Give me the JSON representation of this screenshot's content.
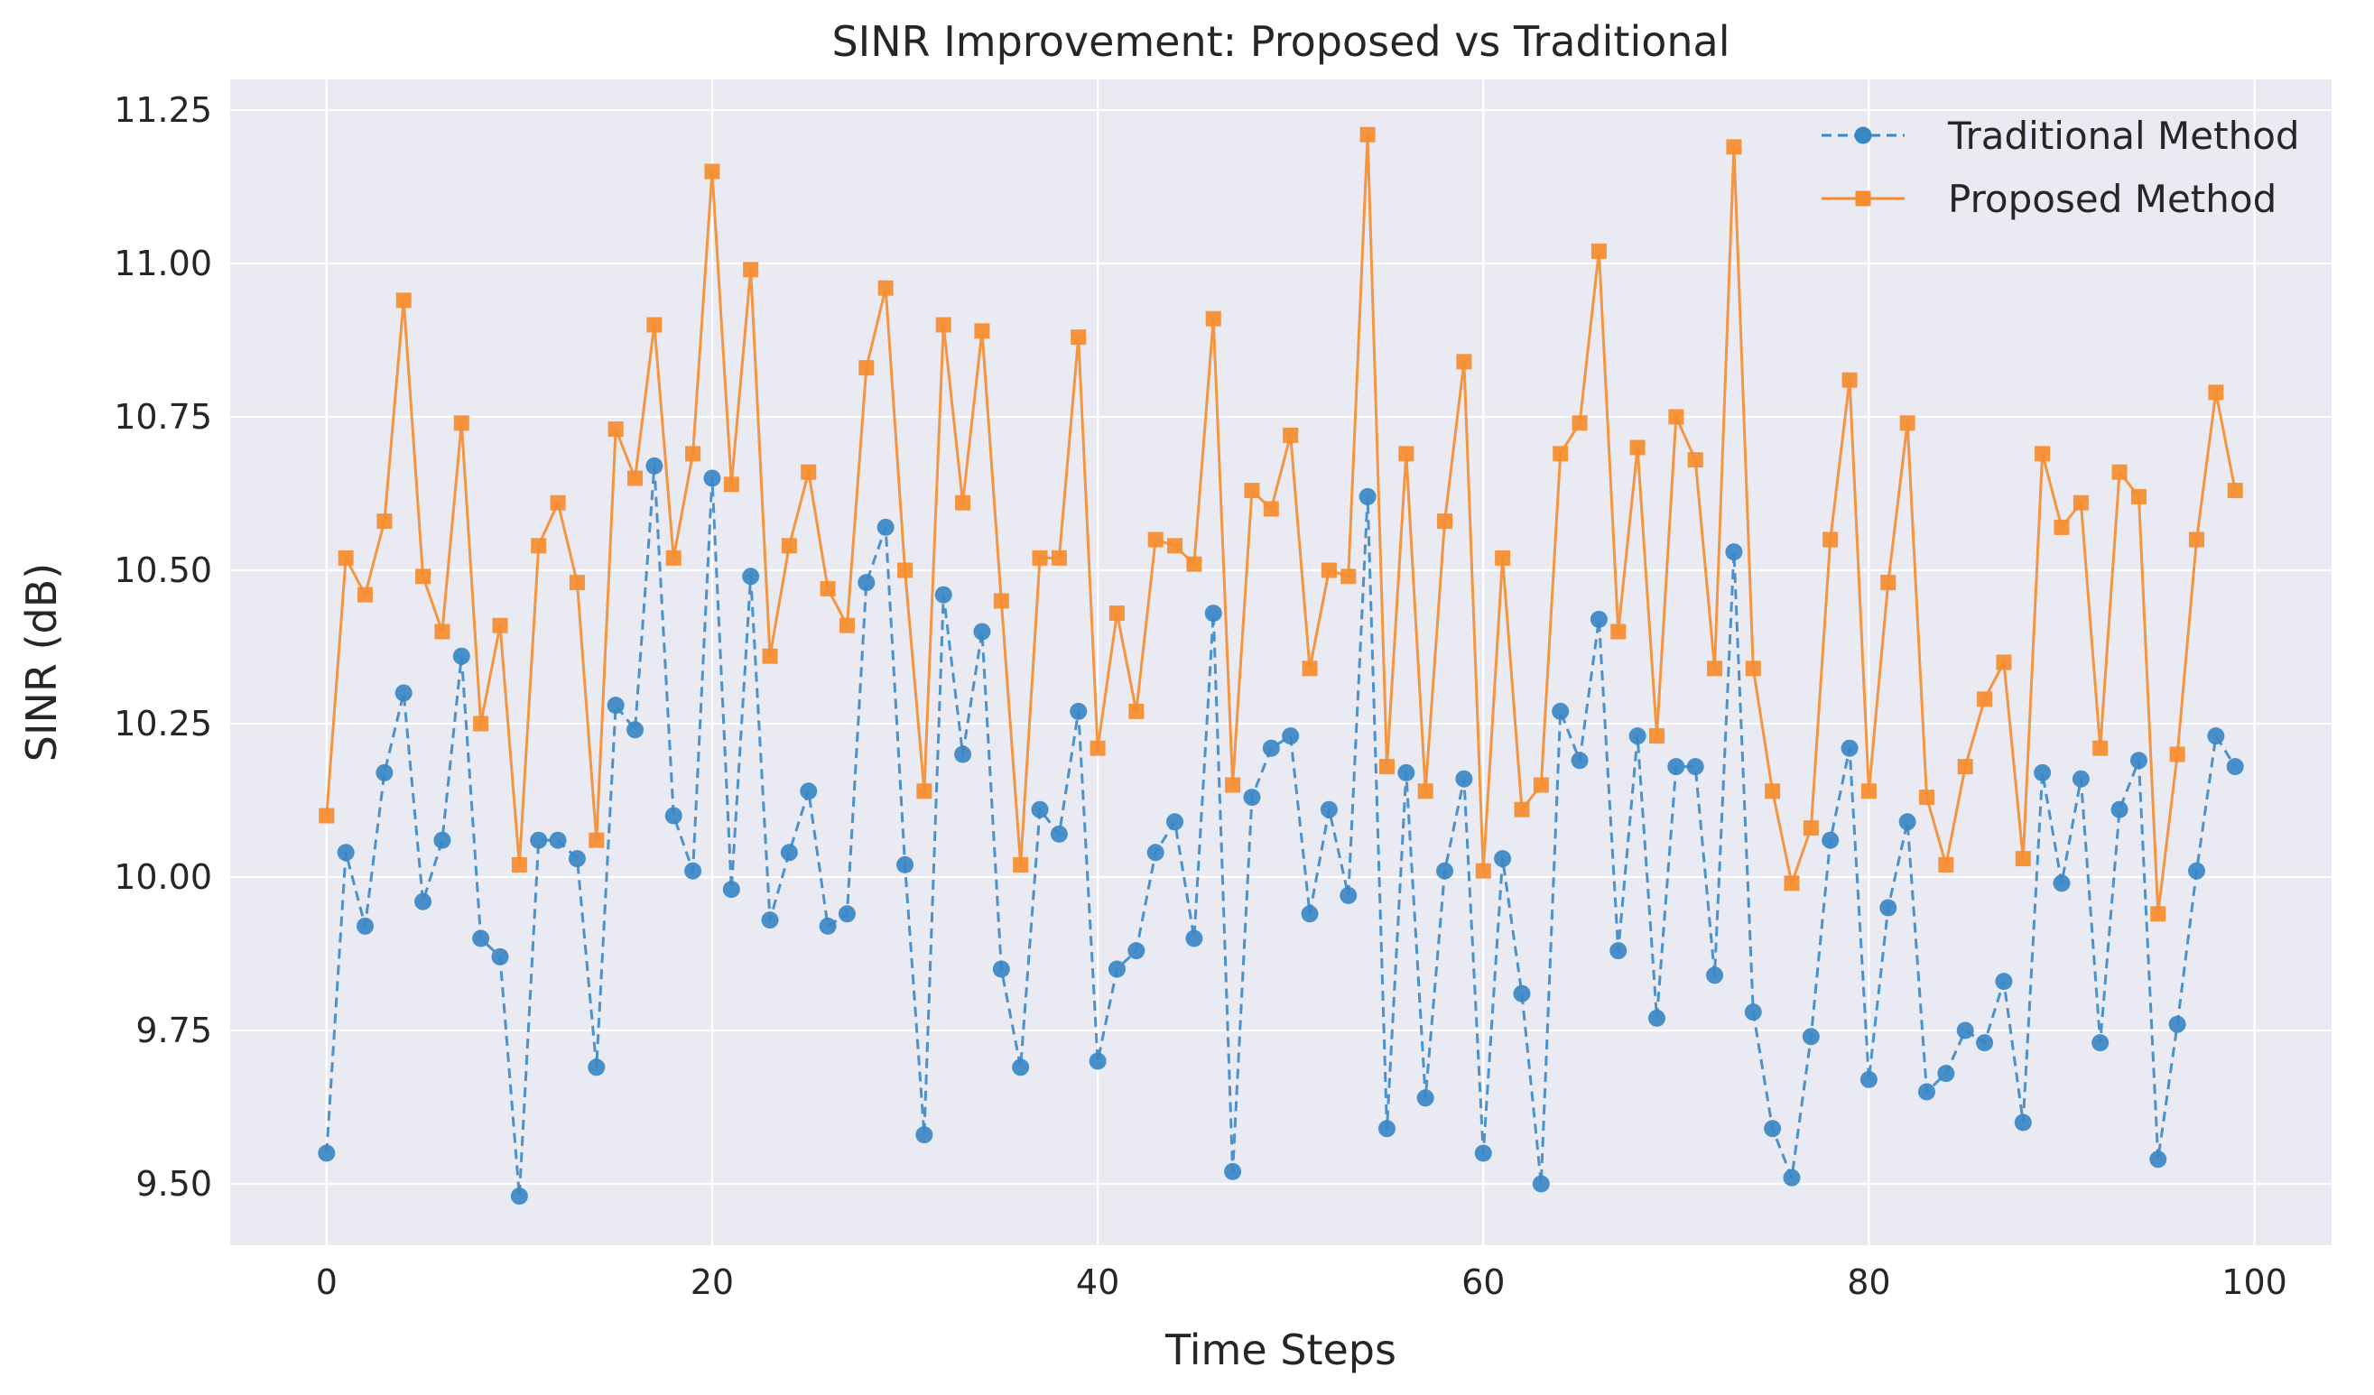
{
  "chart_data": {
    "type": "line",
    "title": "SINR Improvement: Proposed vs Traditional",
    "xlabel": "Time Steps",
    "ylabel": "SINR (dB)",
    "xlim": [
      -5,
      104
    ],
    "ylim": [
      9.4,
      11.3
    ],
    "xticks": [
      0,
      20,
      40,
      60,
      80,
      100
    ],
    "yticks": [
      9.5,
      9.75,
      10.0,
      10.25,
      10.5,
      10.75,
      11.0,
      11.25
    ],
    "xtick_labels": [
      "0",
      "20",
      "40",
      "60",
      "80",
      "100"
    ],
    "ytick_labels": [
      "9.50",
      "9.75",
      "10.00",
      "10.25",
      "10.50",
      "10.75",
      "11.00",
      "11.25"
    ],
    "grid": true,
    "legend_position": "top-right",
    "x": [
      0,
      1,
      2,
      3,
      4,
      5,
      6,
      7,
      8,
      9,
      10,
      11,
      12,
      13,
      14,
      15,
      16,
      17,
      18,
      19,
      20,
      21,
      22,
      23,
      24,
      25,
      26,
      27,
      28,
      29,
      30,
      31,
      32,
      33,
      34,
      35,
      36,
      37,
      38,
      39,
      40,
      41,
      42,
      43,
      44,
      45,
      46,
      47,
      48,
      49,
      50,
      51,
      52,
      53,
      54,
      55,
      56,
      57,
      58,
      59,
      60,
      61,
      62,
      63,
      64,
      65,
      66,
      67,
      68,
      69,
      70,
      71,
      72,
      73,
      74,
      75,
      76,
      77,
      78,
      79,
      80,
      81,
      82,
      83,
      84,
      85,
      86,
      87,
      88,
      89,
      90,
      91,
      92,
      93,
      94,
      95,
      96,
      97,
      98,
      99
    ],
    "series": [
      {
        "name": "Traditional Method",
        "color": "#3a87c6",
        "line_style": "dashed",
        "marker": "circle",
        "values": [
          9.55,
          10.04,
          9.92,
          10.17,
          10.3,
          9.96,
          10.06,
          10.36,
          9.9,
          9.87,
          9.48,
          10.06,
          10.06,
          10.03,
          9.69,
          10.28,
          10.24,
          10.67,
          10.1,
          10.01,
          10.65,
          9.98,
          10.49,
          9.93,
          10.04,
          10.14,
          9.92,
          9.94,
          10.48,
          10.57,
          10.02,
          9.58,
          10.46,
          10.2,
          10.4,
          9.85,
          9.69,
          10.11,
          10.07,
          10.27,
          9.7,
          9.85,
          9.88,
          10.04,
          10.09,
          9.9,
          10.43,
          9.52,
          10.13,
          10.21,
          10.23,
          9.94,
          10.11,
          9.97,
          10.62,
          9.59,
          10.17,
          9.64,
          10.01,
          10.16,
          9.55,
          10.03,
          9.81,
          9.5,
          10.27,
          10.19,
          10.42,
          9.88,
          10.23,
          9.77,
          10.18,
          10.18,
          9.84,
          10.53,
          9.78,
          9.59,
          9.51,
          9.74,
          10.06,
          10.21,
          9.67,
          9.95,
          10.09,
          9.65,
          9.68,
          9.75,
          9.73,
          9.83,
          9.6,
          10.17,
          9.99,
          10.16,
          9.73,
          10.11,
          10.19,
          9.54,
          9.76,
          10.01,
          10.23,
          10.18
        ]
      },
      {
        "name": "Proposed Method",
        "color": "#f58c2e",
        "line_style": "solid",
        "marker": "square",
        "values": [
          10.1,
          10.52,
          10.46,
          10.58,
          10.94,
          10.49,
          10.4,
          10.74,
          10.25,
          10.41,
          10.02,
          10.54,
          10.61,
          10.48,
          10.06,
          10.73,
          10.65,
          10.9,
          10.52,
          10.69,
          11.15,
          10.64,
          10.99,
          10.36,
          10.54,
          10.66,
          10.47,
          10.41,
          10.83,
          10.96,
          10.5,
          10.14,
          10.9,
          10.61,
          10.89,
          10.45,
          10.02,
          10.52,
          10.52,
          10.88,
          10.21,
          10.43,
          10.27,
          10.55,
          10.54,
          10.51,
          10.91,
          10.15,
          10.63,
          10.6,
          10.72,
          10.34,
          10.5,
          10.49,
          11.21,
          10.18,
          10.69,
          10.14,
          10.58,
          10.84,
          10.01,
          10.52,
          10.11,
          10.15,
          10.69,
          10.74,
          11.02,
          10.4,
          10.7,
          10.23,
          10.75,
          10.68,
          10.34,
          11.19,
          10.34,
          10.14,
          9.99,
          10.08,
          10.55,
          10.81,
          10.14,
          10.48,
          10.74,
          10.13,
          10.02,
          10.18,
          10.29,
          10.35,
          10.03,
          10.69,
          10.57,
          10.61,
          10.21,
          10.66,
          10.62,
          9.94,
          10.2,
          10.55,
          10.79,
          10.63
        ]
      }
    ]
  }
}
